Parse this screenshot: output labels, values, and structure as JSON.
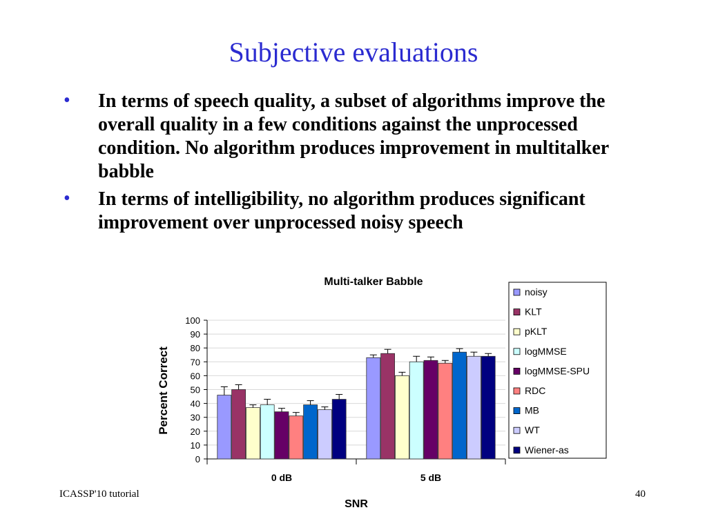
{
  "slide": {
    "title": "Subjective evaluations",
    "bullets": [
      "In terms of speech quality, a subset of algorithms improve the overall quality in a few conditions against the unprocessed condition. No algorithm produces improvement in multitalker babble",
      "In terms of intelligibility, no algorithm produces significant improvement over unprocessed noisy speech"
    ],
    "bullet_symbol": "•",
    "footer_left": "ICASSP'10 tutorial",
    "page_number": "40"
  },
  "chart_data": {
    "type": "bar",
    "title": "Multi-talker Babble",
    "xlabel": "SNR",
    "ylabel": "Percent Correct",
    "categories": [
      "0 dB",
      "5 dB"
    ],
    "ylim": [
      0,
      100
    ],
    "yticks": [
      0,
      10,
      20,
      30,
      40,
      50,
      60,
      70,
      80,
      90,
      100
    ],
    "grid": true,
    "legend_position": "right",
    "series": [
      {
        "name": "noisy",
        "color": "#9999ff",
        "values": [
          46,
          73
        ],
        "errors": [
          6,
          2
        ]
      },
      {
        "name": "KLT",
        "color": "#993366",
        "values": [
          50,
          76
        ],
        "errors": [
          3.5,
          3
        ]
      },
      {
        "name": "pKLT",
        "color": "#ffffcc",
        "values": [
          37,
          60
        ],
        "errors": [
          2,
          2.5
        ]
      },
      {
        "name": "logMMSE",
        "color": "#ccffff",
        "values": [
          39,
          70
        ],
        "errors": [
          4,
          4
        ]
      },
      {
        "name": "logMMSE-SPU",
        "color": "#660066",
        "values": [
          34,
          71
        ],
        "errors": [
          2.5,
          2.5
        ]
      },
      {
        "name": "RDC",
        "color": "#ff8080",
        "values": [
          31,
          69
        ],
        "errors": [
          2.5,
          2
        ]
      },
      {
        "name": "MB",
        "color": "#0066cc",
        "values": [
          39,
          77
        ],
        "errors": [
          3,
          2.5
        ]
      },
      {
        "name": "WT",
        "color": "#ccccff",
        "values": [
          35.5,
          74
        ],
        "errors": [
          2,
          3
        ]
      },
      {
        "name": "Wiener-as",
        "color": "#000080",
        "values": [
          43,
          74
        ],
        "errors": [
          3.5,
          2
        ]
      }
    ]
  }
}
